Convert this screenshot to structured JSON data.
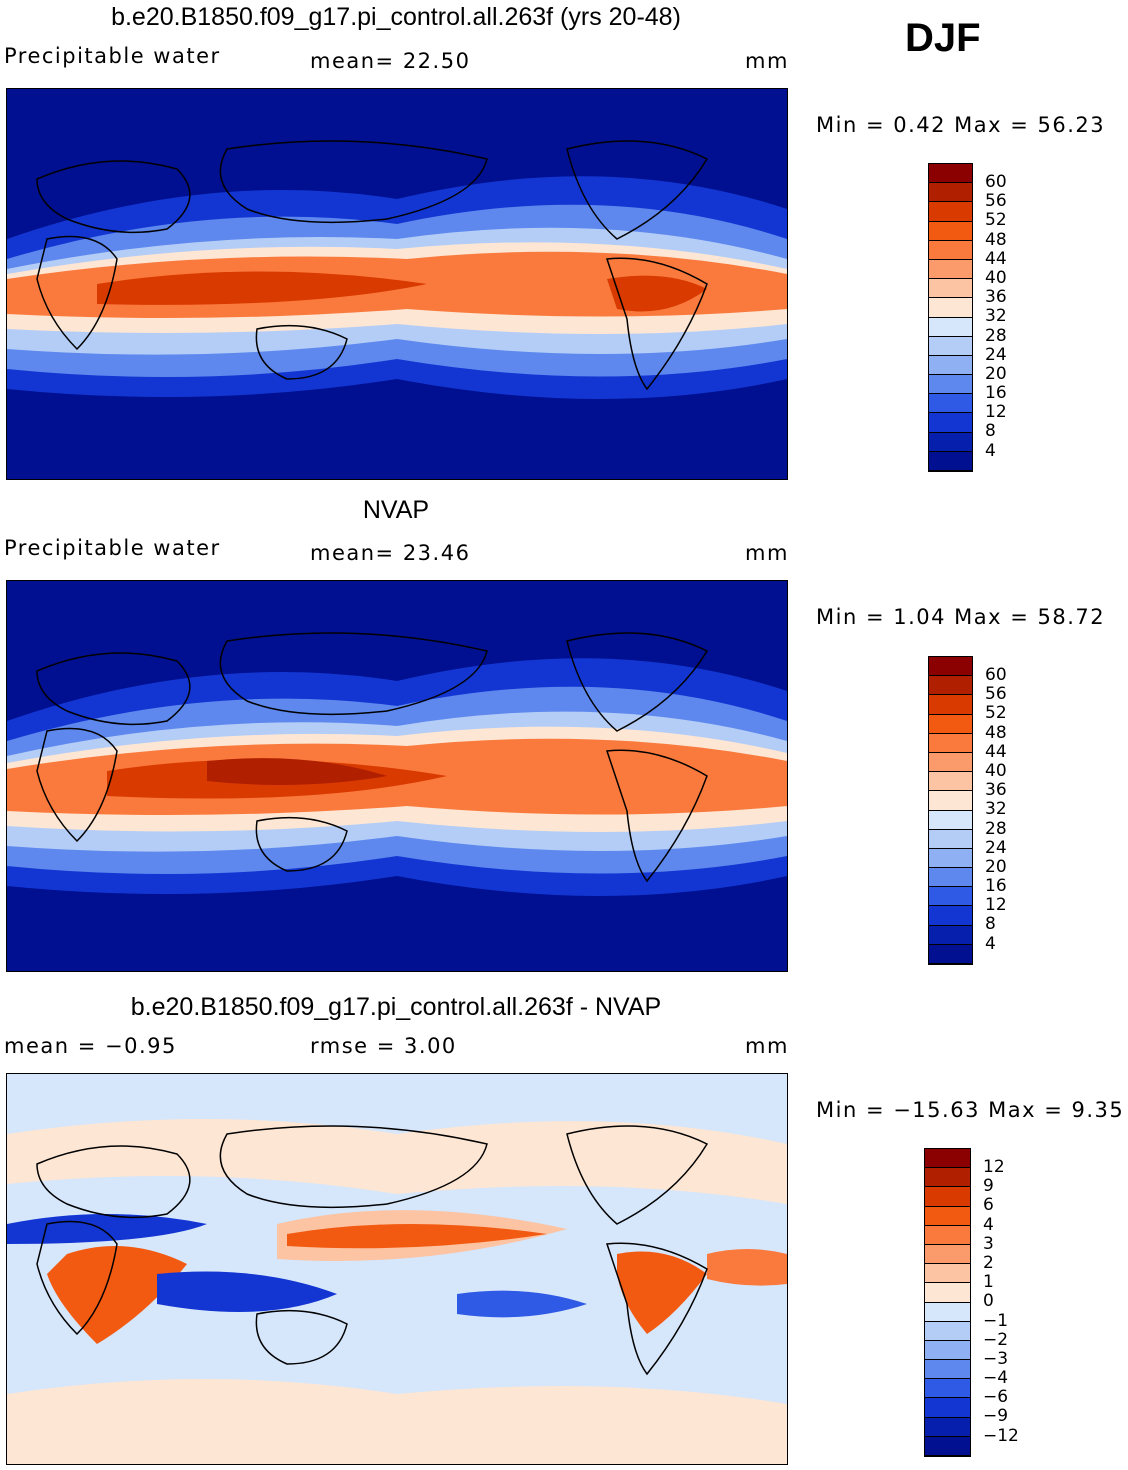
{
  "season": "DJF",
  "panels": [
    {
      "title": "b.e20.B1850.f09_g17.pi_control.all.263f (yrs 20-48)",
      "left_label": "Precipitable  water",
      "mid_label": "mean=   22.50",
      "units": "mm",
      "minmax": "Min  =     0.42  Max  =     56.23",
      "colorbar": {
        "labels": [
          "60",
          "56",
          "52",
          "48",
          "44",
          "40",
          "36",
          "32",
          "28",
          "24",
          "20",
          "16",
          "12",
          "8",
          "4"
        ],
        "colors": [
          "#8b0000",
          "#b01f00",
          "#d93a00",
          "#f25a12",
          "#fa7a3d",
          "#fb9a6a",
          "#fcc4a3",
          "#fde6d3",
          "#d6e6fb",
          "#b3cdf7",
          "#8fb0f3",
          "#5e88ee",
          "#2f5ae6",
          "#1336d2",
          "#0620ad",
          "#001090"
        ]
      }
    },
    {
      "title": "NVAP",
      "left_label": "Precipitable  water",
      "mid_label": "mean=   23.46",
      "units": "mm",
      "minmax": "Min  =     1.04  Max  =     58.72",
      "colorbar": {
        "labels": [
          "60",
          "56",
          "52",
          "48",
          "44",
          "40",
          "36",
          "32",
          "28",
          "24",
          "20",
          "16",
          "12",
          "8",
          "4"
        ],
        "colors": [
          "#8b0000",
          "#b01f00",
          "#d93a00",
          "#f25a12",
          "#fa7a3d",
          "#fb9a6a",
          "#fcc4a3",
          "#fde6d3",
          "#d6e6fb",
          "#b3cdf7",
          "#8fb0f3",
          "#5e88ee",
          "#2f5ae6",
          "#1336d2",
          "#0620ad",
          "#001090"
        ]
      }
    },
    {
      "title": "b.e20.B1850.f09_g17.pi_control.all.263f - NVAP",
      "left_label": "mean  =    −0.95",
      "mid_label": "rmse  =     3.00",
      "units": "mm",
      "minmax": "Min  = −15.63  Max  =      9.35",
      "colorbar": {
        "labels": [
          "12",
          "9",
          "6",
          "4",
          "3",
          "2",
          "1",
          "0",
          "−1",
          "−2",
          "−3",
          "−4",
          "−6",
          "−9",
          "−12"
        ],
        "colors": [
          "#8b0000",
          "#b01f00",
          "#d93a00",
          "#f25a12",
          "#fa7a3d",
          "#fb9a6a",
          "#fcc4a3",
          "#fde6d3",
          "#d6e6fb",
          "#b3cdf7",
          "#8fb0f3",
          "#5e88ee",
          "#2f5ae6",
          "#1336d2",
          "#0620ad",
          "#001090"
        ]
      }
    }
  ]
}
